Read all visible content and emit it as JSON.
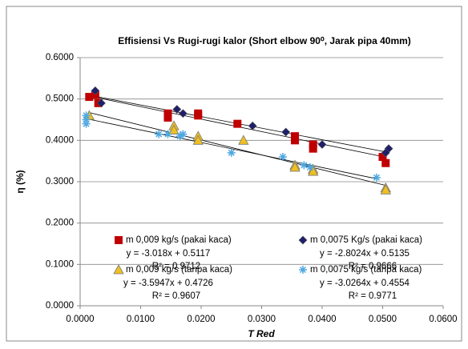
{
  "chart_data": {
    "type": "scatter",
    "title": "Effisiensi Vs Rugi-rugi kalor (Short elbow 90⁰, Jarak pipa 40mm)",
    "x_label": "T Red",
    "y_label": "η (%)",
    "xlim": [
      0,
      0.06
    ],
    "ylim": [
      0,
      0.6
    ],
    "xticks": [
      {
        "value": 0,
        "label": "0.0000"
      },
      {
        "value": 0.01,
        "label": "0.0100"
      },
      {
        "value": 0.02,
        "label": "0.0200"
      },
      {
        "value": 0.03,
        "label": "0.0300"
      },
      {
        "value": 0.04,
        "label": "0.0400"
      },
      {
        "value": 0.05,
        "label": "0.0500"
      },
      {
        "value": 0.06,
        "label": "0.0600"
      }
    ],
    "yticks": [
      {
        "value": 0,
        "label": "0.0000"
      },
      {
        "value": 0.1,
        "label": "0.1000"
      },
      {
        "value": 0.2,
        "label": "0.2000"
      },
      {
        "value": 0.3,
        "label": "0.3000"
      },
      {
        "value": 0.4,
        "label": "0.4000"
      },
      {
        "value": 0.5,
        "label": "0.5000"
      },
      {
        "value": 0.6,
        "label": "0.6000"
      }
    ],
    "grid": true,
    "series": [
      {
        "name": "m 0,009 kg/s (pakai kaca)",
        "color": "#c00000",
        "marker": "square",
        "x": [
          0.0015,
          0.0025,
          0.003,
          0.0145,
          0.0145,
          0.0195,
          0.0195,
          0.026,
          0.0355,
          0.0355,
          0.0385,
          0.0385,
          0.05,
          0.0505
        ],
        "y": [
          0.505,
          0.51,
          0.49,
          0.465,
          0.455,
          0.465,
          0.46,
          0.44,
          0.41,
          0.4,
          0.39,
          0.38,
          0.36,
          0.345
        ],
        "trendline": {
          "slope": -3.018,
          "intercept": 0.5117,
          "label": "y = -3.018x + 0.5117",
          "r2_label": "R² = 0.9712"
        }
      },
      {
        "name": "m 0,0075 Kg/s (pakai kaca)",
        "color": "#1f1f6b",
        "marker": "diamond",
        "x": [
          0.0025,
          0.0035,
          0.016,
          0.017,
          0.0285,
          0.034,
          0.04,
          0.051,
          0.0505
        ],
        "y": [
          0.52,
          0.49,
          0.475,
          0.465,
          0.435,
          0.42,
          0.39,
          0.38,
          0.37
        ],
        "trendline": {
          "slope": -2.8024,
          "intercept": 0.5135,
          "label": "y = -2.8024x + 0.5135",
          "r2_label": "R² = 0.9666"
        }
      },
      {
        "name": "m 0,009 kg/s (tanpa kaca)",
        "color": "#f0c020",
        "marker": "triangle",
        "x": [
          0.0015,
          0.0155,
          0.0155,
          0.0195,
          0.0195,
          0.027,
          0.0355,
          0.0355,
          0.0385,
          0.0385,
          0.0505,
          0.0505
        ],
        "y": [
          0.46,
          0.435,
          0.425,
          0.41,
          0.4,
          0.4,
          0.34,
          0.335,
          0.33,
          0.325,
          0.285,
          0.28
        ],
        "trendline": {
          "slope": -3.5947,
          "intercept": 0.4726,
          "label": "y = -3.5947x + 0.4726",
          "r2_label": "R² = 0.9607"
        }
      },
      {
        "name": "m 0,0075 kg/s (tanpa kaca)",
        "color": "#4fa8e0",
        "marker": "asterisk",
        "x": [
          0.001,
          0.001,
          0.001,
          0.013,
          0.0145,
          0.0165,
          0.017,
          0.025,
          0.0335,
          0.037,
          0.038,
          0.049
        ],
        "y": [
          0.46,
          0.45,
          0.44,
          0.415,
          0.415,
          0.41,
          0.415,
          0.37,
          0.36,
          0.34,
          0.335,
          0.31
        ],
        "trendline": {
          "slope": -3.0264,
          "intercept": 0.4554,
          "label": "y = -3.0264x + 0.4554",
          "r2_label": "R² = 0.9771"
        }
      }
    ]
  }
}
